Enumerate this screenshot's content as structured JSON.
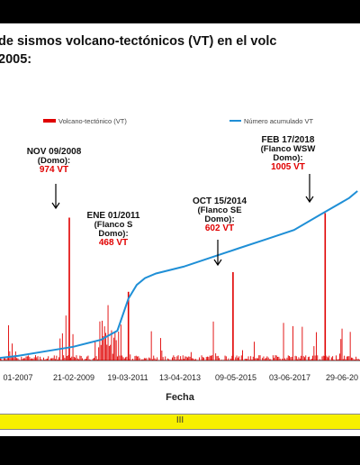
{
  "chart_data": {
    "type": "bar",
    "title_line1": "de sismos volcano-tectónicos (VT) en el volc",
    "title_line2": "2005:",
    "xlabel": "Fecha",
    "ylim": [
      0,
      1100
    ],
    "y2lim": [
      0,
      100
    ],
    "x_ticks": [
      "01-2007",
      "21-02-2009",
      "19-03-2011",
      "13-04-2013",
      "09-05-2015",
      "03-06-2017",
      "29-06-20"
    ],
    "series": [
      {
        "name": "Volcano-tectónico (VT)",
        "color": "#e00000",
        "kind": "bar"
      },
      {
        "name": "Número acumulado VT",
        "color": "#1f8fd6",
        "kind": "line"
      }
    ],
    "peaks": [
      {
        "date": "NOV 09/2008",
        "t": 2008.86,
        "value": 974,
        "label_lines": [
          "NOV 09/2008",
          "(Domo):"
        ],
        "value_label": "974 VT"
      },
      {
        "date": "ENE 01/2011",
        "t": 2011.0,
        "value": 468,
        "label_lines": [
          "ENE 01/2011",
          "(Flanco S",
          "Domo):"
        ],
        "value_label": "468 VT"
      },
      {
        "date": "OCT 15/2014",
        "t": 2014.79,
        "value": 602,
        "label_lines": [
          "OCT 15/2014",
          "(Flanco SE",
          "Domo):"
        ],
        "value_label": "602 VT"
      },
      {
        "date": "FEB 17/2018",
        "t": 2018.13,
        "value": 1005,
        "label_lines": [
          "FEB 17/2018",
          "(Flanco WSW",
          "Domo):"
        ],
        "value_label": "1005 VT"
      }
    ],
    "cumulative_percent": [
      [
        2005.5,
        0
      ],
      [
        2007.0,
        2
      ],
      [
        2008.0,
        4
      ],
      [
        2009.0,
        6
      ],
      [
        2010.0,
        9
      ],
      [
        2010.6,
        13
      ],
      [
        2011.0,
        27
      ],
      [
        2011.3,
        33
      ],
      [
        2011.6,
        36
      ],
      [
        2012.0,
        38
      ],
      [
        2013.0,
        41
      ],
      [
        2014.0,
        45
      ],
      [
        2015.0,
        49
      ],
      [
        2016.0,
        53
      ],
      [
        2017.0,
        57
      ],
      [
        2018.0,
        64
      ],
      [
        2019.0,
        71
      ],
      [
        2019.3,
        74
      ]
    ]
  },
  "footer": {
    "mark": "III"
  }
}
